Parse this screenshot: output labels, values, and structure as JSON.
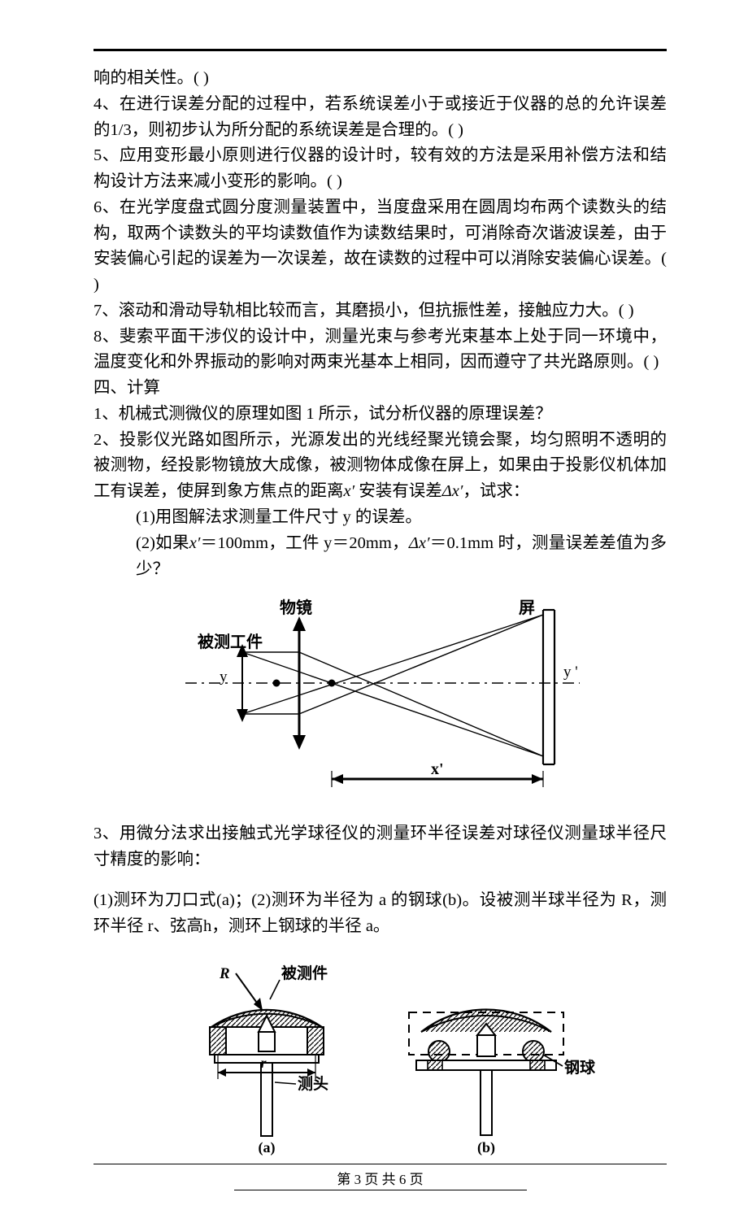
{
  "q3_tail": "响的相关性。(    )",
  "q4": "4、在进行误差分配的过程中，若系统误差小于或接近于仪器的总的允许误差的1/3，则初步认为所分配的系统误差是合理的。(    )",
  "q5": "5、应用变形最小原则进行仪器的设计时，较有效的方法是采用补偿方法和结构设计方法来减小变形的影响。(    )",
  "q6": "6、在光学度盘式圆分度测量装置中，当度盘采用在圆周均布两个读数头的结构，取两个读数头的平均读数值作为读数结果时，可消除奇次谐波误差，由于安装偏心引起的误差为一次误差，故在读数的过程中可以消除安装偏心误差。(      )",
  "q7": "7、滚动和滑动导轨相比较而言，其磨损小，但抗振性差，接触应力大。(      )",
  "q8": "8、斐索平面干涉仪的设计中，测量光束与参考光束基本上处于同一环境中，温度变化和外界振动的影响对两束光基本上相同，因而遵守了共光路原则。(      )",
  "sec4": "四、计算",
  "c1": "1、机械式测微仪的原理如图 1 所示，试分析仪器的原理误差？",
  "c2": "2、投影仪光路如图所示，光源发出的光线经聚光镜会聚，均匀照明不透明的被测物，经投影物镜放大成像，被测物体成像在屏上，如果由于投影仪机体加工有误差，使屏到象方焦点的距离",
  "c2_mid": " 安装有误差",
  "c2_end": "，试求：",
  "c2_1": "(1)用图解法求测量工件尺寸 y 的误差。",
  "c2_2a": "(2)如果",
  "c2_2b": "＝100mm，工件 y＝20mm，",
  "c2_2c": "＝0.1mm 时，测量误差差值为多少？",
  "x_prime": "x′",
  "dx_prime": "Δx′",
  "c3": "3、用微分法求出接触式光学球径仪的测量环半径误差对球径仪测量球半径尺寸精度的影响：",
  "c3_sub": "(1)测环为刀口式(a)；(2)测环为半径为 a 的钢球(b)。设被测半球半径为 R，测环半径 r、弦高h，测环上钢球的半径 a。",
  "fig1": {
    "label_lens": "物镜",
    "label_screen": "屏",
    "label_workpiece": "被测工件",
    "label_y": "y",
    "label_yprime": "y '",
    "label_xprime": "x'",
    "colors": {
      "stroke": "#000000",
      "fill_arrow": "#000000"
    },
    "line_w_thin": 1.4,
    "line_w_bold": 3,
    "dash": "14 6 3 6"
  },
  "fig2": {
    "label_R": "R",
    "label_workpiece": "被测件",
    "label_probe": "测头",
    "label_ball": "钢球",
    "label_r": "r",
    "label_a": "(a)",
    "label_b": "(b)",
    "stroke": "#000000",
    "hatch_gap": 6
  },
  "footer": {
    "text": "第 3 页 共 6 页"
  }
}
